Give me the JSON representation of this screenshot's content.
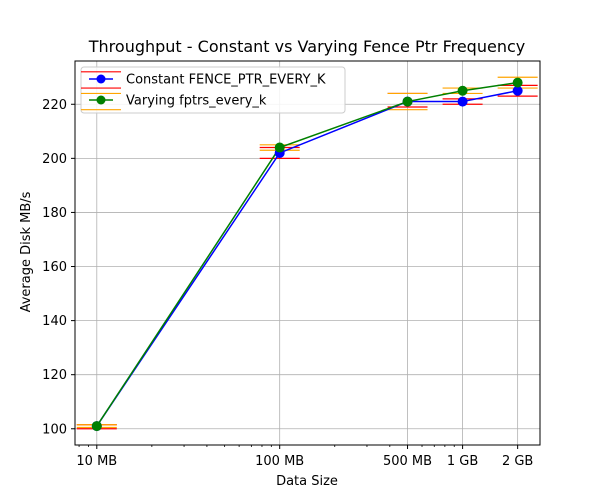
{
  "chart_data": {
    "type": "line",
    "title": "Throughput - Constant vs Varying Fence Ptr Frequency",
    "xlabel": "Data Size",
    "ylabel": "Average Disk MB/s",
    "xscale": "log",
    "grid": true,
    "legend_position": "upper-left",
    "x": [
      10,
      100,
      500,
      1000,
      2000
    ],
    "x_unit": "MB",
    "xticks": [
      {
        "value": 10,
        "label": "10 MB"
      },
      {
        "value": 100,
        "label": "100 MB"
      },
      {
        "value": 500,
        "label": "500 MB"
      },
      {
        "value": 1000,
        "label": "1 GB"
      },
      {
        "value": 2000,
        "label": "2 GB"
      }
    ],
    "xlim": [
      7.6,
      2650
    ],
    "ylim": [
      94,
      236
    ],
    "yticks": [
      100,
      120,
      140,
      160,
      180,
      200,
      220
    ],
    "series": [
      {
        "name": "Constant FENCE_PTR_EVERY_K",
        "color": "#0000ff",
        "marker_color": "#0000ff",
        "error_color": "#ff0000",
        "values": [
          101,
          202,
          221,
          221,
          225
        ],
        "error_low": [
          100,
          200,
          219,
          220,
          223
        ],
        "error_high": [
          101.5,
          204,
          224,
          222,
          227
        ]
      },
      {
        "name": "Varying fptrs_every_k",
        "color": "#008000",
        "marker_color": "#008000",
        "error_color": "#ffa500",
        "values": [
          101,
          204,
          221,
          225,
          228
        ],
        "error_low": [
          100.5,
          203,
          218,
          224,
          226
        ],
        "error_high": [
          101.5,
          205,
          224,
          226,
          230
        ]
      }
    ],
    "legend_error_colors": [
      {
        "color": "#ff0000",
        "bars": [
          232,
          226
        ]
      },
      {
        "color": "#ffa500",
        "bars": [
          224,
          218
        ]
      }
    ]
  }
}
